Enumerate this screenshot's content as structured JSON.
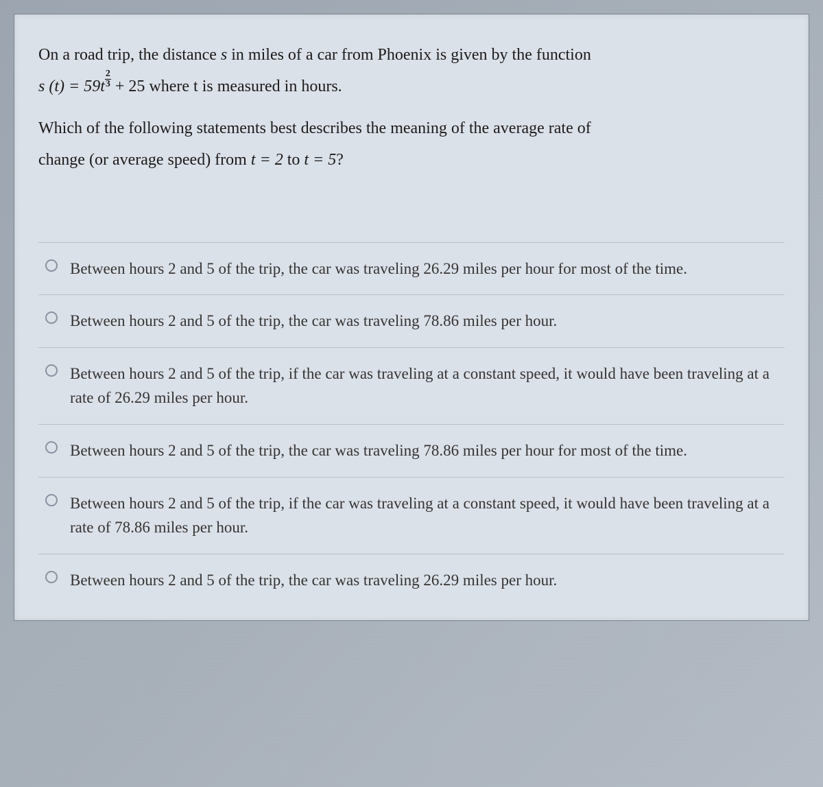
{
  "question": {
    "line1_pre": "On a road trip, the distance ",
    "line1_var": "s",
    "line1_mid": " in miles of a car from Phoenix is given by the function",
    "formula_lhs": "s (t) = 59t",
    "formula_exp_num": "2",
    "formula_exp_den": "3",
    "formula_rhs": " + 25 ",
    "formula_tail": "where t is measured in hours.",
    "prompt_line1": "Which of the following statements best describes the meaning of the average rate of",
    "prompt_line2_pre": "change (or average speed) from ",
    "prompt_t1": "t = 2",
    "prompt_mid": " to ",
    "prompt_t2": "t = 5",
    "prompt_end": "?"
  },
  "options": [
    "Between hours 2 and 5 of the trip, the car was traveling 26.29 miles per hour for most of the time.",
    "Between hours 2 and 5 of the trip, the car was traveling 78.86 miles per hour.",
    "Between hours 2 and 5 of the trip, if the car was traveling at a constant speed, it would have been traveling at a rate of 26.29 miles per hour.",
    "Between hours 2 and 5 of the trip, the car was traveling 78.86 miles per hour for most of the time.",
    "Between hours 2 and 5 of the trip, if the car was traveling at a constant speed, it would have been traveling at a rate of 78.86 miles per hour.",
    "Between hours 2 and 5 of the trip, the car was traveling 26.29 miles per hour."
  ],
  "colors": {
    "page_bg": "#a8b0ba",
    "card_bg": "#dce2e9",
    "border": "#b8c0ca",
    "text": "#1a1a1a",
    "option_text": "#333333",
    "radio_border": "#8a92a0"
  },
  "typography": {
    "question_fontsize": 24,
    "option_fontsize": 23,
    "font_family": "Georgia, serif"
  }
}
